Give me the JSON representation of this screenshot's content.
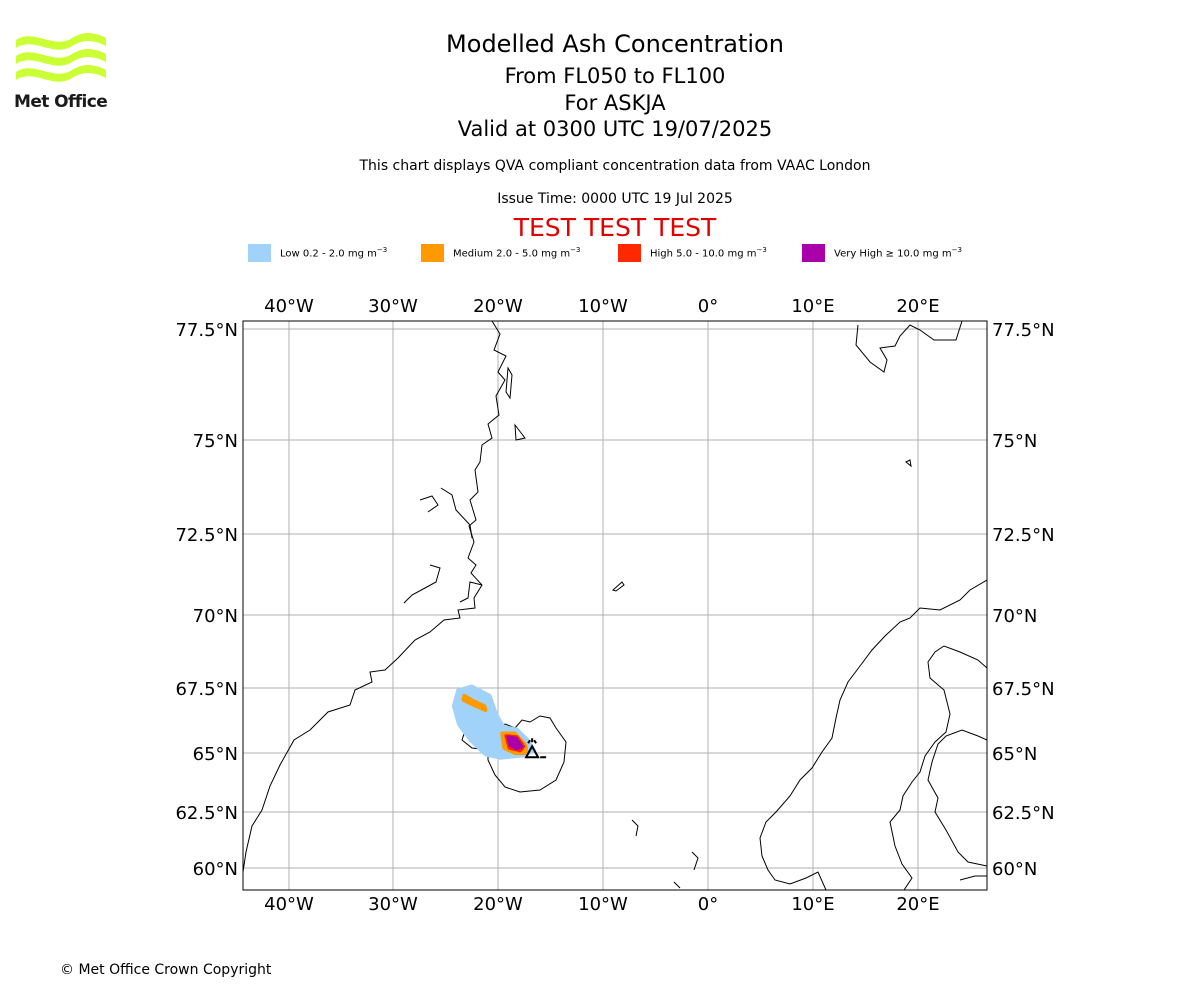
{
  "logo": {
    "text": "Met Office",
    "color": "#ccff33"
  },
  "header": {
    "title": "Modelled Ash Concentration",
    "flight_levels": "From FL050 to FL100",
    "volcano": "For ASKJA",
    "valid_time": "Valid at 0300 UTC 19/07/2025",
    "description": "This chart displays QVA compliant concentration data from VAAC London",
    "issue_time": "Issue Time: 0000 UTC 19 Jul 2025",
    "test_banner": "TEST TEST TEST",
    "test_banner_color": "#e00000"
  },
  "legend": [
    {
      "label": "Low 0.2 - 2.0 mg m",
      "unit_exp": "−3",
      "color": "#a0d2fa"
    },
    {
      "label": "Medium 2.0 - 5.0 mg m",
      "unit_exp": "−3",
      "color": "#ff9900"
    },
    {
      "label": "High 5.0 - 10.0 mg m",
      "unit_exp": "−3",
      "color": "#ff2800"
    },
    {
      "label": "Very High  ≥  10.0 mg m",
      "unit_exp": "−3",
      "color": "#aa00aa"
    }
  ],
  "chart_data": {
    "type": "map",
    "projection": "polar stereographic",
    "longitude_ticks": [
      "40°W",
      "30°W",
      "20°W",
      "10°W",
      "0°",
      "10°E",
      "20°E"
    ],
    "longitude_values": [
      -40,
      -30,
      -20,
      -10,
      0,
      10,
      20
    ],
    "latitude_ticks": [
      "77.5°N",
      "75°N",
      "72.5°N",
      "70°N",
      "67.5°N",
      "65°N",
      "62.5°N",
      "60°N"
    ],
    "latitude_values": [
      77.5,
      75,
      72.5,
      70,
      67.5,
      65,
      62.5,
      60
    ],
    "grid": true,
    "volcano": {
      "name": "ASKJA",
      "lat": 65.03,
      "lon": -16.75
    },
    "ash_areas": [
      {
        "level": "Low",
        "polygon_lonlat": [
          [
            -23.8,
            67.4
          ],
          [
            -22.5,
            67.55
          ],
          [
            -20.8,
            67.2
          ],
          [
            -20.2,
            66.5
          ],
          [
            -19.5,
            66.0
          ],
          [
            -18.2,
            65.9
          ],
          [
            -17.2,
            65.5
          ],
          [
            -16.6,
            65.1
          ],
          [
            -17.6,
            64.9
          ],
          [
            -19.8,
            64.8
          ],
          [
            -21.2,
            64.95
          ],
          [
            -22.6,
            65.5
          ],
          [
            -23.7,
            66.1
          ],
          [
            -24.2,
            66.8
          ]
        ]
      },
      {
        "level": "Medium",
        "polygon_lonlat": [
          [
            -23.2,
            67.2
          ],
          [
            -22.4,
            67.0
          ],
          [
            -21.3,
            66.8
          ],
          [
            -21.2,
            66.65
          ],
          [
            -22.3,
            66.85
          ],
          [
            -23.3,
            67.05
          ]
        ]
      },
      {
        "level": "Medium",
        "polygon_lonlat": [
          [
            -19.6,
            65.75
          ],
          [
            -18.4,
            65.75
          ],
          [
            -17.4,
            65.3
          ],
          [
            -17.3,
            65.0
          ],
          [
            -18.4,
            65.0
          ],
          [
            -19.4,
            65.2
          ]
        ]
      },
      {
        "level": "High",
        "polygon_lonlat": [
          [
            -19.2,
            65.65
          ],
          [
            -18.2,
            65.6
          ],
          [
            -17.6,
            65.25
          ],
          [
            -17.9,
            65.1
          ],
          [
            -18.9,
            65.2
          ]
        ]
      },
      {
        "level": "Very High",
        "polygon_lonlat": [
          [
            -19.0,
            65.6
          ],
          [
            -18.3,
            65.55
          ],
          [
            -17.8,
            65.25
          ],
          [
            -18.2,
            65.18
          ],
          [
            -18.8,
            65.3
          ]
        ]
      }
    ]
  },
  "footer": {
    "copyright": "© Met Office Crown Copyright"
  }
}
